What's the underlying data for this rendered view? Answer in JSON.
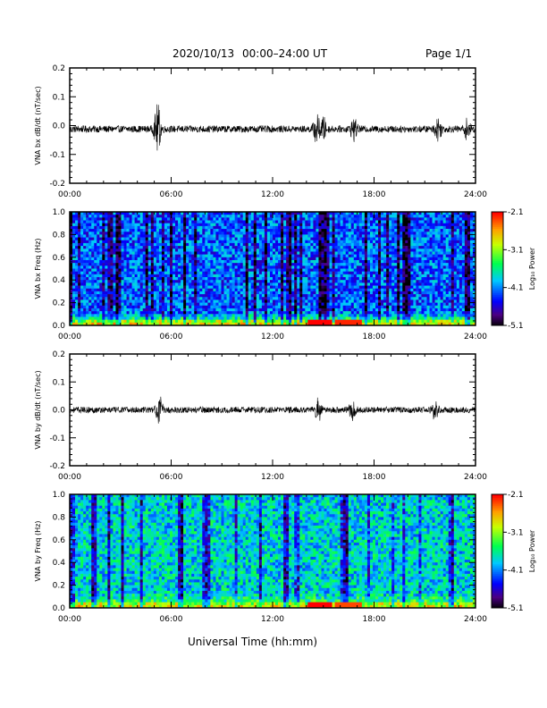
{
  "header": {
    "date": "2020/10/13",
    "time_range": "00:00–24:00 UT",
    "page": "Page 1/1"
  },
  "footer": {
    "xlabel": "Universal Time (hh:mm)"
  },
  "chart_data": [
    {
      "type": "line",
      "ylabel": "VNA bx dB/dt (nT/sec)",
      "xlim": [
        0,
        24
      ],
      "ylim": [
        -0.2,
        0.2
      ],
      "x_tick_labels": [
        "00:00",
        "06:00",
        "12:00",
        "18:00",
        "24:00"
      ],
      "y_tick_labels": [
        "0.2",
        "0.1",
        "0.0",
        "-0.1",
        "-0.2"
      ],
      "y_tick_values": [
        0.2,
        0.1,
        0.0,
        -0.1,
        -0.2
      ],
      "baseline": -0.012,
      "noise_amplitude": 0.012,
      "bursts": [
        {
          "t": 5.2,
          "amp": 0.08
        },
        {
          "t": 14.6,
          "amp": 0.045
        },
        {
          "t": 15.0,
          "amp": 0.035
        },
        {
          "t": 16.8,
          "amp": 0.035
        },
        {
          "t": 21.8,
          "amp": 0.035
        },
        {
          "t": 23.5,
          "amp": 0.03
        }
      ]
    },
    {
      "type": "heatmap",
      "ylabel": "VNA bx Freq (Hz)",
      "xlim": [
        0,
        24
      ],
      "ylim": [
        0,
        1.0
      ],
      "x_tick_labels": [
        "00:00",
        "06:00",
        "12:00",
        "18:00",
        "24:00"
      ],
      "y_tick_labels": [
        "1.0",
        "0.8",
        "0.6",
        "0.4",
        "0.2",
        "0.0"
      ],
      "y_tick_values": [
        1.0,
        0.8,
        0.6,
        0.4,
        0.2,
        0.0
      ],
      "colorbar": {
        "label": "Log₁₀ Power",
        "range": [
          -5.1,
          -2.1
        ],
        "tick_labels": [
          "-2.1",
          "-3.1",
          "-4.1",
          "-5.1"
        ],
        "tick_values": [
          -2.1,
          -3.1,
          -4.1,
          -5.1
        ]
      },
      "background_level": -4.2,
      "low_freq_level": -3.0,
      "hotspots": [
        {
          "t": 14.8,
          "level": -2.2
        },
        {
          "t": 16.5,
          "level": -2.5
        }
      ]
    },
    {
      "type": "line",
      "ylabel": "VNA by dB/dt (nT/sec)",
      "xlim": [
        0,
        24
      ],
      "ylim": [
        -0.2,
        0.2
      ],
      "x_tick_labels": [
        "00:00",
        "06:00",
        "12:00",
        "18:00",
        "24:00"
      ],
      "y_tick_labels": [
        "0.2",
        "0.1",
        "0.0",
        "-0.1",
        "-0.2"
      ],
      "y_tick_values": [
        0.2,
        0.1,
        0.0,
        -0.1,
        -0.2
      ],
      "baseline": 0.0,
      "noise_amplitude": 0.011,
      "bursts": [
        {
          "t": 5.3,
          "amp": 0.045
        },
        {
          "t": 14.7,
          "amp": 0.04
        },
        {
          "t": 16.7,
          "amp": 0.03
        },
        {
          "t": 21.6,
          "amp": 0.03
        }
      ]
    },
    {
      "type": "heatmap",
      "ylabel": "VNA by Freq (Hz)",
      "xlim": [
        0,
        24
      ],
      "ylim": [
        0,
        1.0
      ],
      "x_tick_labels": [
        "00:00",
        "06:00",
        "12:00",
        "18:00",
        "24:00"
      ],
      "y_tick_labels": [
        "1.0",
        "0.8",
        "0.6",
        "0.4",
        "0.2",
        "0.0"
      ],
      "y_tick_values": [
        1.0,
        0.8,
        0.6,
        0.4,
        0.2,
        0.0
      ],
      "colorbar": {
        "label": "Log₁₀ Power",
        "range": [
          -5.1,
          -2.1
        ],
        "tick_labels": [
          "-2.1",
          "-3.1",
          "-4.1",
          "-5.1"
        ],
        "tick_values": [
          -2.1,
          -3.1,
          -4.1,
          -5.1
        ]
      },
      "background_level": -3.8,
      "low_freq_level": -3.1,
      "hotspots": [
        {
          "t": 14.8,
          "level": -2.3
        },
        {
          "t": 16.5,
          "level": -2.6
        }
      ]
    }
  ]
}
